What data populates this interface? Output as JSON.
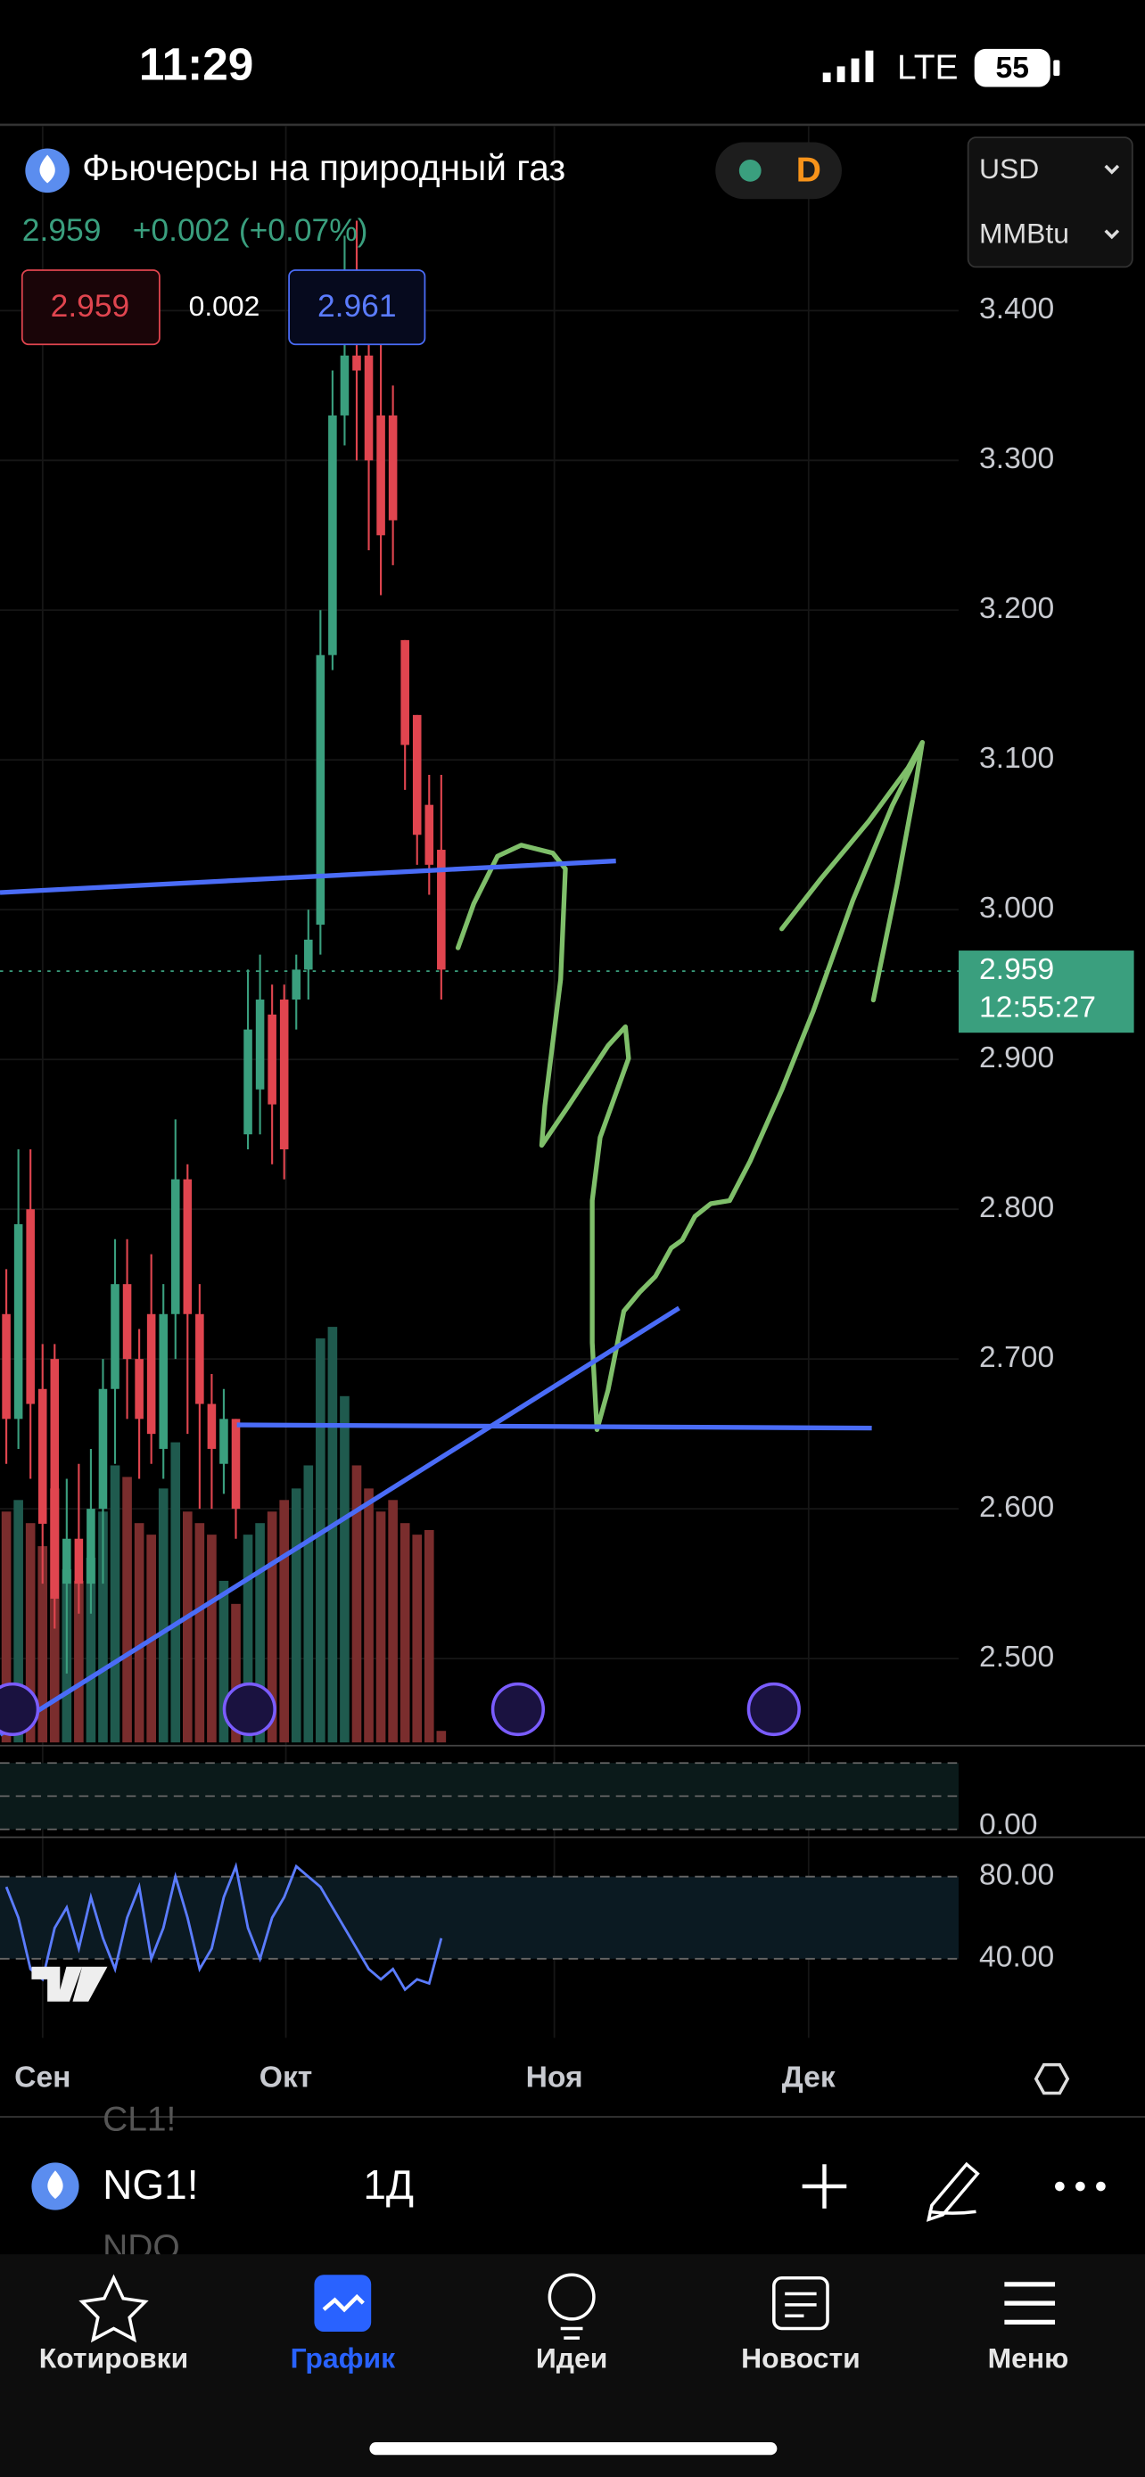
{
  "status_bar": {
    "time": "11:29",
    "network": "LTE",
    "battery": "55"
  },
  "header": {
    "title": "Фьючерсы на природный газ",
    "interval": "D",
    "currency": "USD",
    "unit": "MMBtu",
    "last": "2.959",
    "change": "+0.002 (+0.07%)",
    "bid": "2.959",
    "spread": "0.002",
    "ask": "2.961"
  },
  "chart": {
    "type": "candlestick",
    "candles": [
      [
        2.73,
        2.76,
        2.63,
        2.66
      ],
      [
        2.66,
        2.84,
        2.64,
        2.79
      ],
      [
        2.8,
        2.84,
        2.62,
        2.67
      ],
      [
        2.68,
        2.71,
        2.55,
        2.59
      ],
      [
        2.7,
        2.71,
        2.52,
        2.54
      ],
      [
        2.55,
        2.62,
        2.49,
        2.58
      ],
      [
        2.58,
        2.63,
        2.53,
        2.55
      ],
      [
        2.55,
        2.64,
        2.53,
        2.6
      ],
      [
        2.6,
        2.7,
        2.55,
        2.68
      ],
      [
        2.68,
        2.78,
        2.63,
        2.75
      ],
      [
        2.75,
        2.78,
        2.66,
        2.7
      ],
      [
        2.7,
        2.72,
        2.62,
        2.66
      ],
      [
        2.73,
        2.77,
        2.63,
        2.65
      ],
      [
        2.64,
        2.75,
        2.62,
        2.73
      ],
      [
        2.73,
        2.86,
        2.7,
        2.82
      ],
      [
        2.82,
        2.83,
        2.65,
        2.73
      ],
      [
        2.73,
        2.75,
        2.6,
        2.67
      ],
      [
        2.67,
        2.69,
        2.6,
        2.64
      ],
      [
        2.63,
        2.68,
        2.61,
        2.66
      ],
      [
        2.66,
        2.66,
        2.58,
        2.6
      ],
      [
        2.85,
        2.96,
        2.84,
        2.92
      ],
      [
        2.88,
        2.97,
        2.85,
        2.94
      ],
      [
        2.93,
        2.95,
        2.83,
        2.87
      ],
      [
        2.94,
        2.95,
        2.82,
        2.84
      ],
      [
        2.94,
        2.97,
        2.92,
        2.96
      ],
      [
        2.96,
        3.0,
        2.94,
        2.98
      ],
      [
        2.99,
        3.2,
        2.97,
        3.17
      ],
      [
        3.17,
        3.36,
        3.16,
        3.33
      ],
      [
        3.33,
        3.45,
        3.31,
        3.37
      ],
      [
        3.37,
        3.46,
        3.3,
        3.36
      ],
      [
        3.37,
        3.42,
        3.24,
        3.3
      ],
      [
        3.33,
        3.38,
        3.21,
        3.25
      ],
      [
        3.33,
        3.35,
        3.23,
        3.26
      ],
      [
        3.18,
        3.18,
        3.08,
        3.11
      ],
      [
        3.13,
        3.13,
        3.03,
        3.05
      ],
      [
        3.07,
        3.09,
        3.01,
        3.03
      ],
      [
        3.04,
        3.09,
        2.94,
        2.96
      ]
    ],
    "volume": [
      100,
      105,
      95,
      85,
      110,
      75,
      70,
      80,
      100,
      120,
      115,
      95,
      90,
      110,
      130,
      100,
      95,
      90,
      70,
      60,
      90,
      95,
      100,
      105,
      110,
      120,
      175,
      180,
      150,
      120,
      110,
      100,
      105,
      95,
      90,
      92,
      5
    ],
    "volume_ylim": [
      0,
      700
    ],
    "rsi": [
      75,
      60,
      35,
      30,
      55,
      65,
      45,
      70,
      50,
      35,
      60,
      75,
      40,
      55,
      80,
      60,
      35,
      45,
      70,
      85,
      55,
      40,
      60,
      70,
      85,
      80,
      75,
      65,
      55,
      45,
      35,
      30,
      35,
      25,
      30,
      28,
      50
    ],
    "rsi_ylim": [
      1.5,
      99.2
    ],
    "rsi_yticks": [
      {
        "value": 80,
        "label": "80.00"
      },
      {
        "value": 40,
        "label": "40.00"
      }
    ],
    "osc_ytick": {
      "value": 0,
      "label": "0.00"
    },
    "ylim": [
      2.444,
      3.523
    ],
    "yticks": [
      {
        "value": 3.4,
        "label": "3.400"
      },
      {
        "value": 3.3,
        "label": "3.300"
      },
      {
        "value": 3.2,
        "label": "3.200"
      },
      {
        "value": 3.1,
        "label": "3.100"
      },
      {
        "value": 3.0,
        "label": "3.000"
      },
      {
        "value": 2.9,
        "label": "2.900"
      },
      {
        "value": 2.8,
        "label": "2.800"
      },
      {
        "value": 2.7,
        "label": "2.700"
      },
      {
        "value": 2.6,
        "label": "2.600"
      },
      {
        "value": 2.5,
        "label": "2.500"
      }
    ],
    "last_price": {
      "value": 2.959,
      "label": "2.959"
    },
    "countdown": "12:55:27",
    "xlabels": [
      "Сен",
      "Окт",
      "Ноя",
      "Дек"
    ],
    "up_color": "#3a9f7e",
    "down_color": "#e0454f",
    "grid": true
  },
  "toolbar": {
    "symbol": "NG1!",
    "interval": "1Д",
    "ghost_above": "CL1!",
    "ghost_below": "NDQ"
  },
  "tabs": [
    "Котировки",
    "График",
    "Идеи",
    "Новости",
    "Меню"
  ]
}
